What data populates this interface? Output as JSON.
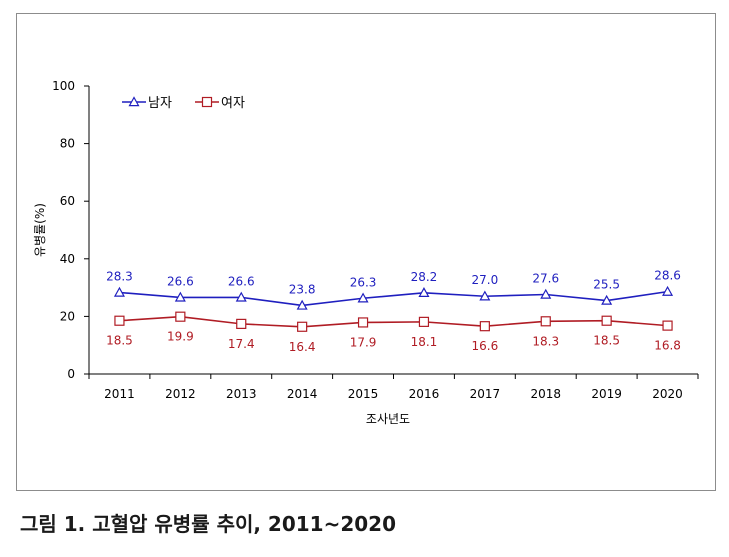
{
  "caption": "그림 1. 고혈압 유병률 추이, 2011~2020",
  "colors": {
    "male": "#1f1fbf",
    "female": "#b01c24",
    "axis": "#000000",
    "frame": "#8c8c8c"
  },
  "chart_data": {
    "type": "line",
    "title": "",
    "xlabel": "조사년도",
    "ylabel": "유병률(%)",
    "ylim": [
      0,
      100
    ],
    "yticks": [
      0,
      20,
      40,
      60,
      80,
      100
    ],
    "grid": false,
    "legend_position": "top-left",
    "categories": [
      "2011",
      "2012",
      "2013",
      "2014",
      "2015",
      "2016",
      "2017",
      "2018",
      "2019",
      "2020"
    ],
    "series": [
      {
        "name": "남자",
        "marker": "triangle",
        "color": "#1f1fbf",
        "values": [
          28.3,
          26.6,
          26.6,
          23.8,
          26.3,
          28.2,
          27.0,
          27.6,
          25.5,
          28.6
        ],
        "labels": [
          "28.3",
          "26.6",
          "26.6",
          "23.8",
          "26.3",
          "28.2",
          "27.0",
          "27.6",
          "25.5",
          "28.6"
        ]
      },
      {
        "name": "여자",
        "marker": "square",
        "color": "#b01c24",
        "values": [
          18.5,
          19.9,
          17.4,
          16.4,
          17.9,
          18.1,
          16.6,
          18.3,
          18.5,
          16.8
        ],
        "labels": [
          "18.5",
          "19.9",
          "17.4",
          "16.4",
          "17.9",
          "18.1",
          "16.6",
          "18.3",
          "18.5",
          "16.8"
        ]
      }
    ]
  }
}
